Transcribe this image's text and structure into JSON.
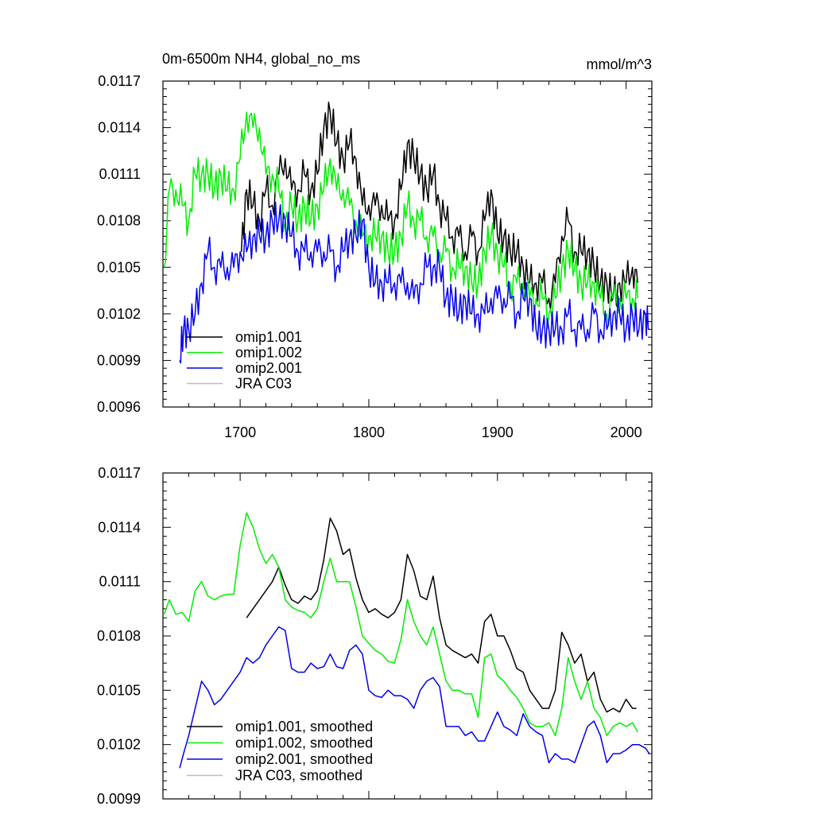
{
  "chart_data": [
    {
      "type": "line",
      "title": "0m-6500m NH4, global_no_ms",
      "units": "mmol/m^3",
      "xlim": [
        1640,
        2020
      ],
      "ylim": [
        0.0096,
        0.0117
      ],
      "x_ticks": [
        1700,
        1800,
        1900,
        2000
      ],
      "x_tick_labels": [
        "1700",
        "1800",
        "1900",
        "2000"
      ],
      "y_ticks": [
        0.0096,
        0.0099,
        0.0102,
        0.0105,
        0.0108,
        0.0111,
        0.0114,
        0.0117
      ],
      "y_tick_labels": [
        "0.0096",
        "0.0099",
        "0.0102",
        "0.0105",
        "0.0108",
        "0.0111",
        "0.0114",
        "0.0117"
      ],
      "legend_position": "bottom-left",
      "series": [
        {
          "name": "omip1.001",
          "color": "#000000",
          "x": [
            1701,
            1705,
            1710,
            1715,
            1720,
            1725,
            1730,
            1735,
            1740,
            1745,
            1750,
            1755,
            1760,
            1765,
            1770,
            1775,
            1780,
            1785,
            1790,
            1795,
            1800,
            1805,
            1810,
            1815,
            1820,
            1825,
            1830,
            1835,
            1840,
            1845,
            1850,
            1855,
            1860,
            1865,
            1870,
            1875,
            1880,
            1885,
            1890,
            1895,
            1900,
            1905,
            1910,
            1915,
            1920,
            1925,
            1930,
            1935,
            1940,
            1945,
            1950,
            1955,
            1960,
            1965,
            1970,
            1975,
            1980,
            1985,
            1990,
            1995,
            2000,
            2005,
            2009
          ],
          "y": [
            0.0106,
            0.011,
            0.0109,
            0.0108,
            0.011,
            0.0109,
            0.0111,
            0.0112,
            0.011,
            0.011,
            0.0111,
            0.011,
            0.0111,
            0.0114,
            0.0115,
            0.0113,
            0.0112,
            0.0113,
            0.0112,
            0.0109,
            0.0109,
            0.0109,
            0.0109,
            0.0108,
            0.0108,
            0.011,
            0.0113,
            0.0112,
            0.0111,
            0.011,
            0.0111,
            0.0109,
            0.0108,
            0.0107,
            0.0107,
            0.0106,
            0.0107,
            0.0106,
            0.0108,
            0.011,
            0.0107,
            0.0107,
            0.0106,
            0.0106,
            0.0105,
            0.0104,
            0.0104,
            0.0104,
            0.0103,
            0.0104,
            0.0107,
            0.0108,
            0.0106,
            0.0106,
            0.0106,
            0.0105,
            0.0104,
            0.0104,
            0.0103,
            0.0104,
            0.0104,
            0.0105,
            0.0104
          ]
        },
        {
          "name": "omip1.002",
          "color": "#00ee00",
          "x": [
            1641,
            1645,
            1650,
            1655,
            1660,
            1665,
            1670,
            1675,
            1680,
            1685,
            1690,
            1695,
            1700,
            1705,
            1710,
            1715,
            1720,
            1725,
            1730,
            1735,
            1740,
            1745,
            1750,
            1755,
            1760,
            1765,
            1770,
            1775,
            1780,
            1785,
            1790,
            1795,
            1800,
            1805,
            1810,
            1815,
            1820,
            1825,
            1830,
            1835,
            1840,
            1845,
            1850,
            1855,
            1860,
            1865,
            1870,
            1875,
            1880,
            1885,
            1890,
            1895,
            1900,
            1905,
            1910,
            1915,
            1920,
            1925,
            1930,
            1935,
            1940,
            1945,
            1950,
            1955,
            1960,
            1965,
            1970,
            1975,
            1980,
            1985,
            1990,
            1995,
            2000,
            2005,
            2009
          ],
          "y": [
            0.0105,
            0.011,
            0.011,
            0.0109,
            0.0108,
            0.0111,
            0.0111,
            0.0111,
            0.011,
            0.0111,
            0.011,
            0.011,
            0.0112,
            0.0115,
            0.0114,
            0.0114,
            0.0111,
            0.0111,
            0.011,
            0.0108,
            0.0109,
            0.0108,
            0.0109,
            0.0108,
            0.0109,
            0.011,
            0.0112,
            0.011,
            0.011,
            0.0109,
            0.0108,
            0.0107,
            0.0107,
            0.0107,
            0.0107,
            0.0106,
            0.0106,
            0.0107,
            0.0109,
            0.0108,
            0.0108,
            0.0107,
            0.0107,
            0.0106,
            0.0106,
            0.0105,
            0.0105,
            0.0105,
            0.0104,
            0.0104,
            0.0106,
            0.0107,
            0.0106,
            0.0105,
            0.0104,
            0.0104,
            0.0104,
            0.0103,
            0.0103,
            0.0103,
            0.0102,
            0.0103,
            0.0105,
            0.0106,
            0.0105,
            0.0104,
            0.0104,
            0.0104,
            0.0103,
            0.0102,
            0.0103,
            0.0103,
            0.0103,
            0.0103,
            0.0103
          ]
        },
        {
          "name": "omip2.001",
          "color": "#0000ee",
          "x": [
            1653,
            1656,
            1660,
            1665,
            1670,
            1675,
            1680,
            1685,
            1690,
            1695,
            1700,
            1705,
            1710,
            1715,
            1720,
            1725,
            1730,
            1735,
            1740,
            1745,
            1750,
            1755,
            1760,
            1765,
            1770,
            1775,
            1780,
            1785,
            1790,
            1795,
            1800,
            1805,
            1810,
            1815,
            1820,
            1825,
            1830,
            1835,
            1840,
            1845,
            1850,
            1855,
            1860,
            1865,
            1870,
            1875,
            1880,
            1885,
            1890,
            1895,
            1900,
            1905,
            1910,
            1915,
            1920,
            1925,
            1930,
            1935,
            1940,
            1945,
            1950,
            1955,
            1960,
            1965,
            1970,
            1975,
            1980,
            1985,
            1990,
            1995,
            2000,
            2005,
            2010,
            2015,
            2018
          ],
          "y": [
            0.0099,
            0.0101,
            0.0101,
            0.0102,
            0.0104,
            0.0106,
            0.0105,
            0.0105,
            0.0105,
            0.0105,
            0.0106,
            0.0106,
            0.0107,
            0.0107,
            0.0107,
            0.0108,
            0.0108,
            0.0108,
            0.0107,
            0.0106,
            0.0106,
            0.0106,
            0.0106,
            0.0106,
            0.0106,
            0.0105,
            0.0106,
            0.0107,
            0.0107,
            0.0108,
            0.0105,
            0.0104,
            0.0104,
            0.0104,
            0.0104,
            0.0104,
            0.0104,
            0.0103,
            0.0104,
            0.0105,
            0.0105,
            0.0105,
            0.0103,
            0.0103,
            0.0102,
            0.0103,
            0.0102,
            0.0102,
            0.0102,
            0.0103,
            0.0103,
            0.0103,
            0.0103,
            0.0102,
            0.0103,
            0.0103,
            0.0101,
            0.0101,
            0.0101,
            0.0101,
            0.0101,
            0.0102,
            0.0101,
            0.0101,
            0.0101,
            0.0102,
            0.0101,
            0.0101,
            0.0102,
            0.0102,
            0.0101,
            0.0102,
            0.0101,
            0.0102,
            0.0101
          ]
        },
        {
          "name": "JRA C03",
          "color": "#bbbbbb",
          "x": [],
          "y": []
        }
      ]
    },
    {
      "type": "line",
      "title": "",
      "xlim": [
        1640,
        2020
      ],
      "ylim": [
        0.0099,
        0.0117
      ],
      "x_ticks": [
        1700,
        1800,
        1900,
        2000
      ],
      "y_ticks": [
        0.0099,
        0.0102,
        0.0105,
        0.0108,
        0.0111,
        0.0114,
        0.0117
      ],
      "y_tick_labels": [
        "0.0099",
        "0.0102",
        "0.0105",
        "0.0108",
        "0.0111",
        "0.0114",
        "0.0117"
      ],
      "legend_position": "bottom-left",
      "series": [
        {
          "name": "omip1.001, smoothed",
          "color": "#000000",
          "x": [
            1705,
            1710,
            1715,
            1720,
            1725,
            1730,
            1735,
            1740,
            1745,
            1750,
            1755,
            1760,
            1765,
            1770,
            1775,
            1780,
            1785,
            1790,
            1795,
            1800,
            1805,
            1810,
            1815,
            1820,
            1825,
            1830,
            1835,
            1840,
            1845,
            1850,
            1855,
            1860,
            1865,
            1870,
            1875,
            1880,
            1885,
            1890,
            1895,
            1900,
            1905,
            1910,
            1915,
            1920,
            1925,
            1930,
            1935,
            1940,
            1945,
            1950,
            1955,
            1960,
            1965,
            1970,
            1975,
            1980,
            1985,
            1990,
            1995,
            2000,
            2005,
            2008
          ],
          "y": [
            0.0109,
            0.01095,
            0.011,
            0.01105,
            0.0111,
            0.01118,
            0.01108,
            0.011,
            0.01098,
            0.01102,
            0.011,
            0.01105,
            0.01122,
            0.01145,
            0.01138,
            0.01125,
            0.01128,
            0.01112,
            0.011,
            0.01093,
            0.01095,
            0.01092,
            0.0109,
            0.01093,
            0.011,
            0.01125,
            0.01116,
            0.01102,
            0.011,
            0.01113,
            0.0109,
            0.01075,
            0.01072,
            0.0107,
            0.01068,
            0.0107,
            0.01065,
            0.01088,
            0.01092,
            0.0108,
            0.0108,
            0.01072,
            0.01062,
            0.0106,
            0.0105,
            0.01045,
            0.0104,
            0.0104,
            0.0105,
            0.01082,
            0.01075,
            0.01065,
            0.0107,
            0.01055,
            0.0106,
            0.01045,
            0.01038,
            0.0104,
            0.01038,
            0.01045,
            0.0104,
            0.0104
          ]
        },
        {
          "name": "omip1.002, smoothed",
          "color": "#00ee00",
          "x": [
            1641,
            1645,
            1650,
            1655,
            1660,
            1665,
            1670,
            1675,
            1680,
            1685,
            1690,
            1695,
            1700,
            1705,
            1710,
            1715,
            1720,
            1725,
            1730,
            1735,
            1740,
            1745,
            1750,
            1755,
            1760,
            1765,
            1770,
            1775,
            1780,
            1785,
            1790,
            1795,
            1800,
            1805,
            1810,
            1815,
            1820,
            1825,
            1830,
            1835,
            1840,
            1845,
            1850,
            1855,
            1860,
            1865,
            1870,
            1875,
            1880,
            1885,
            1890,
            1895,
            1900,
            1905,
            1910,
            1915,
            1920,
            1925,
            1930,
            1935,
            1940,
            1945,
            1950,
            1955,
            1960,
            1965,
            1970,
            1975,
            1980,
            1985,
            1990,
            1995,
            2000,
            2005,
            2009
          ],
          "y": [
            0.01092,
            0.011,
            0.01092,
            0.01093,
            0.01088,
            0.01105,
            0.0111,
            0.01102,
            0.011,
            0.01102,
            0.01103,
            0.01103,
            0.0113,
            0.01148,
            0.0114,
            0.01128,
            0.0112,
            0.01125,
            0.01118,
            0.011,
            0.01096,
            0.01094,
            0.01093,
            0.0109,
            0.01095,
            0.0111,
            0.01123,
            0.0111,
            0.0111,
            0.0111,
            0.01096,
            0.0108,
            0.01076,
            0.01072,
            0.0107,
            0.01066,
            0.01065,
            0.01078,
            0.011,
            0.01088,
            0.0108,
            0.01075,
            0.01085,
            0.0107,
            0.01055,
            0.0105,
            0.0105,
            0.01048,
            0.01048,
            0.01035,
            0.01068,
            0.0107,
            0.01058,
            0.01055,
            0.0105,
            0.01046,
            0.0104,
            0.01032,
            0.0103,
            0.0103,
            0.01032,
            0.01025,
            0.0104,
            0.01068,
            0.01055,
            0.01045,
            0.01055,
            0.0104,
            0.01035,
            0.01025,
            0.0103,
            0.01032,
            0.0103,
            0.01032,
            0.01027
          ]
        },
        {
          "name": "omip2.001, smoothed",
          "color": "#0000ee",
          "x": [
            1653,
            1656,
            1660,
            1665,
            1670,
            1675,
            1680,
            1685,
            1690,
            1695,
            1700,
            1705,
            1710,
            1715,
            1720,
            1725,
            1730,
            1735,
            1740,
            1745,
            1750,
            1755,
            1760,
            1765,
            1770,
            1775,
            1780,
            1785,
            1790,
            1795,
            1800,
            1805,
            1810,
            1815,
            1820,
            1825,
            1830,
            1835,
            1840,
            1845,
            1850,
            1855,
            1860,
            1865,
            1870,
            1875,
            1880,
            1885,
            1890,
            1895,
            1900,
            1905,
            1910,
            1915,
            1920,
            1925,
            1930,
            1935,
            1940,
            1945,
            1950,
            1955,
            1960,
            1965,
            1970,
            1975,
            1980,
            1985,
            1990,
            1995,
            2000,
            2005,
            2010,
            2015,
            2018
          ],
          "y": [
            0.01007,
            0.01015,
            0.01025,
            0.0104,
            0.01055,
            0.0105,
            0.01042,
            0.01045,
            0.0105,
            0.01055,
            0.0106,
            0.01068,
            0.01065,
            0.01068,
            0.01075,
            0.0108,
            0.01085,
            0.01083,
            0.01062,
            0.0106,
            0.0106,
            0.01065,
            0.01062,
            0.01063,
            0.0107,
            0.01063,
            0.01062,
            0.01072,
            0.01075,
            0.0107,
            0.0105,
            0.01047,
            0.01046,
            0.0105,
            0.01047,
            0.01047,
            0.01045,
            0.0104,
            0.0105,
            0.01055,
            0.01057,
            0.01052,
            0.0103,
            0.0103,
            0.0103,
            0.01025,
            0.01027,
            0.01022,
            0.01022,
            0.0103,
            0.01038,
            0.0103,
            0.01028,
            0.01025,
            0.01037,
            0.0103,
            0.01027,
            0.01025,
            0.0101,
            0.01015,
            0.01012,
            0.01012,
            0.0101,
            0.0102,
            0.0103,
            0.01033,
            0.01025,
            0.0101,
            0.01015,
            0.01015,
            0.01017,
            0.0102,
            0.0102,
            0.01018,
            0.01015
          ]
        },
        {
          "name": "JRA C03, smoothed",
          "color": "#bbbbbb",
          "x": [],
          "y": []
        }
      ]
    }
  ]
}
